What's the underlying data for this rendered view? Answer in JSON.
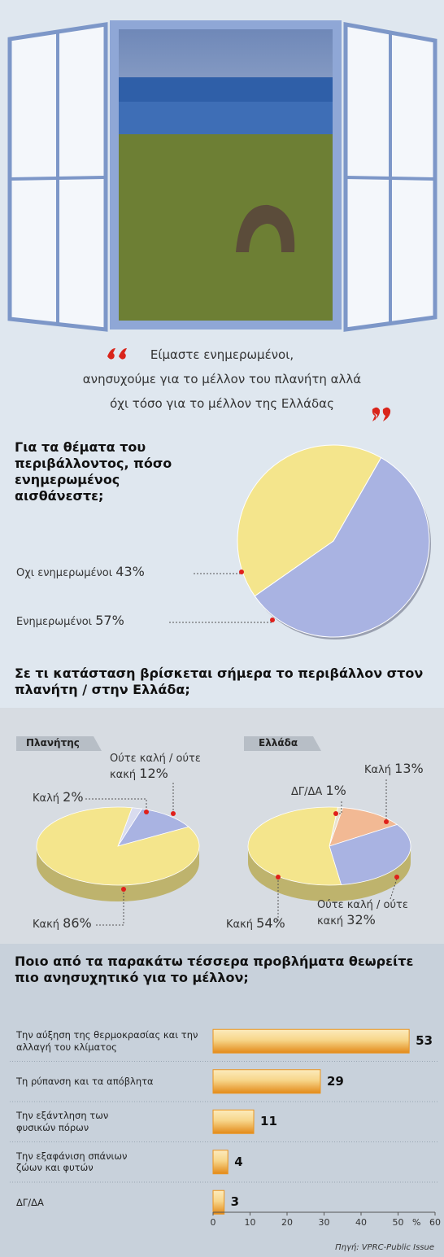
{
  "quote": [
    "Είμαστε ενημερωμένοι,",
    "ανησυχούμε για το μέλλον του πλανήτη αλλά",
    "όχι τόσο για το μέλλον της Ελλάδας"
  ],
  "chart_data": [
    {
      "type": "pie",
      "title": "Για τα θέματα του περιβάλλοντος, πόσο ενημερωμένος αισθάνεστε;",
      "categories": [
        "Οχι ενημερωμένοι",
        "Ενημερωμένοι"
      ],
      "values": [
        43,
        57
      ],
      "value_labels": [
        "43%",
        "57%"
      ],
      "colors": [
        "#f4e58c",
        "#a9b3e2"
      ]
    },
    {
      "type": "pie3d",
      "title": "Σε τι κατάσταση βρίσκεται σήμερα το περιβάλλον στον πλανήτη / στην Ελλάδα;",
      "subtitle": "Πλανήτης",
      "categories": [
        "Καλή",
        "Ούτε καλή / ούτε κακή",
        "Κακή"
      ],
      "values": [
        2,
        12,
        86
      ],
      "value_labels": [
        "2%",
        "12%",
        "86%"
      ],
      "colors": [
        "#d9dcef",
        "#a9b3e2",
        "#f4e58c"
      ]
    },
    {
      "type": "pie3d",
      "subtitle": "Ελλάδα",
      "categories": [
        "ΔΓ/ΔΑ",
        "Καλή",
        "Ούτε καλή / ούτε κακή",
        "Κακή"
      ],
      "values": [
        1,
        13,
        32,
        54
      ],
      "value_labels": [
        "1%",
        "13%",
        "32%",
        "54%"
      ],
      "colors": [
        "#e9e3d0",
        "#f2b994",
        "#a9b3e2",
        "#f4e58c"
      ]
    },
    {
      "type": "hbar",
      "title": "Ποιο από τα παρακάτω τέσσερα προβλήματα θεωρείτε πιο ανησυχητικό για το μέλλον;",
      "categories": [
        "Την αύξηση της θερμοκρασίας και την αλλαγή του κλίματος",
        "Τη ρύπανση και τα απόβλητα",
        "Την εξάντληση των φυσικών πόρων",
        "Την εξαφάνιση σπάνιων ζώων και φυτών",
        "ΔΓ/ΔΑ"
      ],
      "values": [
        53,
        29,
        11,
        4,
        3
      ],
      "color": "#e99421",
      "xlim": [
        0,
        60
      ],
      "xticks": [
        0,
        10,
        20,
        30,
        40,
        50,
        60
      ],
      "x_label": "%"
    }
  ],
  "source": "Πηγή: VPRC-Public Issue"
}
